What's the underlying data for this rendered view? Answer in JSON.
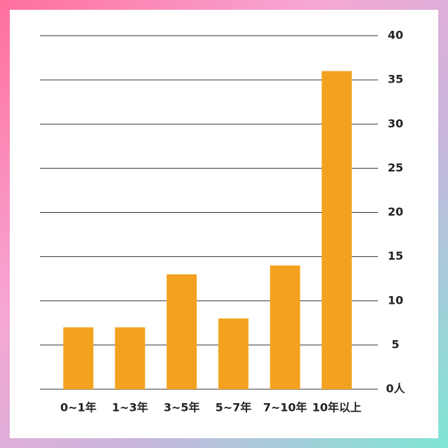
{
  "chart_data": {
    "type": "bar",
    "categories": [
      "0~1年",
      "1~3年",
      "3~5年",
      "5~7年",
      "7~10年",
      "10年以上"
    ],
    "values": [
      7,
      7,
      13,
      8,
      14,
      36
    ],
    "color": "#f3a21f",
    "ylim": [
      0,
      40
    ],
    "yticks": [
      {
        "value": 0,
        "label": "0人"
      },
      5,
      10,
      15,
      20,
      25,
      30,
      35,
      40
    ],
    "grid": true
  }
}
